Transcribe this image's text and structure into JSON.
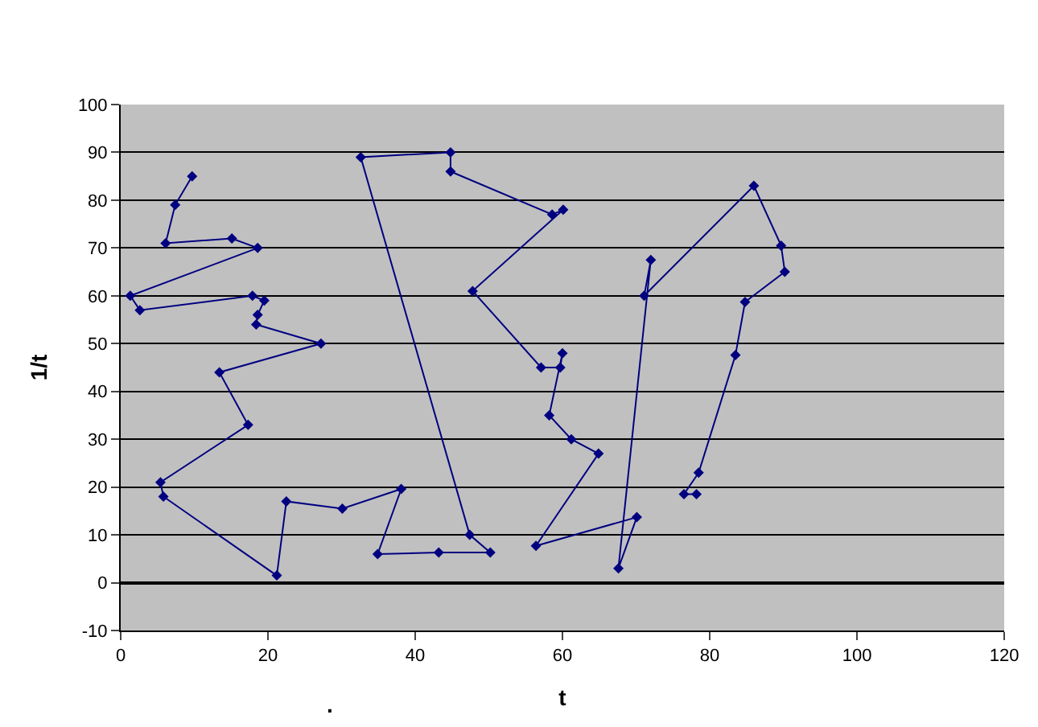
{
  "chart_data": {
    "type": "line",
    "ylabel": "1/t",
    "xlabel": "t",
    "annotations": [
      "."
    ],
    "xlim": [
      0,
      120
    ],
    "xticks": [
      0,
      20,
      40,
      60,
      80,
      100,
      120
    ],
    "ylim": [
      -10,
      100
    ],
    "yticks": [
      -10,
      0,
      10,
      20,
      30,
      40,
      50,
      60,
      70,
      80,
      90,
      100
    ],
    "grid": "y",
    "marker": "diamond",
    "line_style": "solid",
    "legend": false,
    "series": [
      {
        "color": "#000080",
        "x": [
          9.7,
          7.4,
          6.1,
          15.1,
          18.6,
          1.3,
          2.6,
          17.9,
          19.5,
          18.6,
          18.4,
          27.2,
          13.4,
          17.3,
          5.4,
          5.8,
          21.2,
          22.5,
          30.1,
          38.1,
          34.9,
          43.2,
          50.2,
          47.4,
          32.6,
          44.8,
          44.8,
          58.6,
          60.1,
          47.8,
          57.1,
          59.7,
          60,
          58.2,
          61.2,
          64.9,
          56.4,
          70.1,
          67.6,
          72,
          71.1,
          86,
          89.7,
          90.2,
          84.8,
          83.5,
          78.5,
          76.5,
          78.2
        ],
        "values": [
          85,
          79,
          71,
          72,
          70,
          60,
          57,
          60,
          59,
          56,
          54,
          50,
          44,
          33,
          21,
          18,
          1.5,
          17,
          15.5,
          19.6,
          6,
          6.3,
          6.3,
          10,
          89,
          90,
          86,
          77,
          78,
          61,
          45,
          45,
          48,
          35,
          30,
          27,
          7.7,
          13.7,
          3,
          67.5,
          60,
          83,
          70.5,
          65,
          58.7,
          47.6,
          23,
          18.5,
          18.5
        ]
      }
    ]
  }
}
